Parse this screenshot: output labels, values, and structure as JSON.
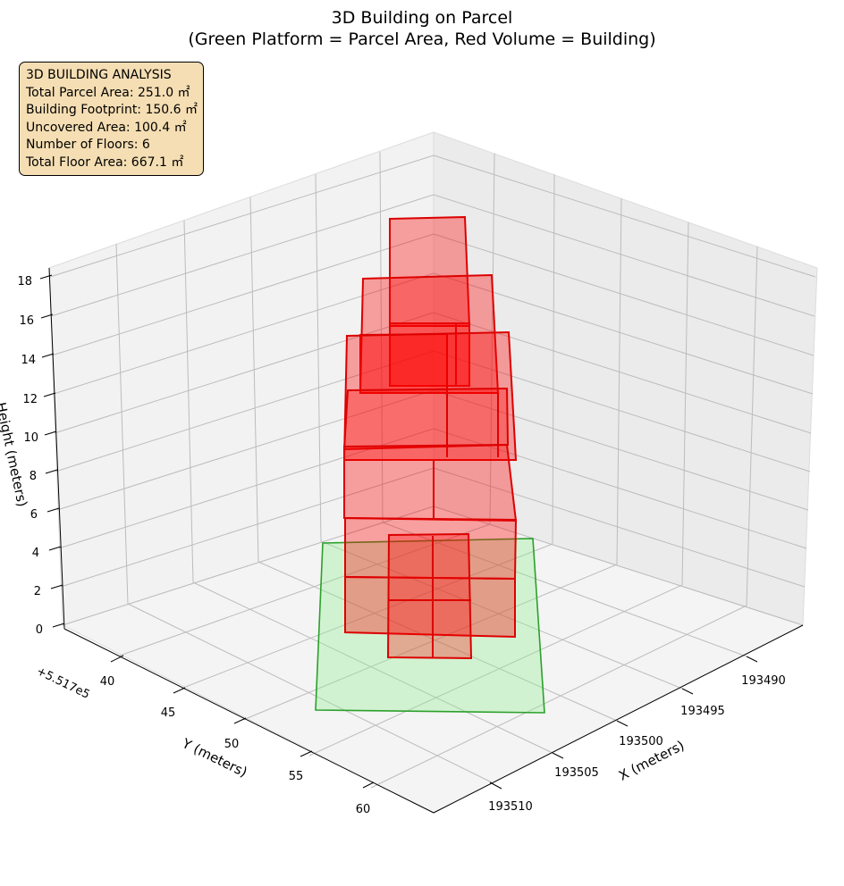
{
  "chart_data": {
    "type": "3d-boxes",
    "title_line1": "3D Building on Parcel",
    "title_line2": "(Green Platform = Parcel Area, Red Volume = Building)",
    "x_axis": {
      "label": "X (meters)",
      "ticks": [
        "193490",
        "193495",
        "193500",
        "193505",
        "193510"
      ]
    },
    "y_axis": {
      "label": "Y (meters)",
      "offset": "+5.517e5",
      "ticks": [
        "40",
        "45",
        "50",
        "55",
        "60"
      ]
    },
    "z_axis": {
      "label": "Height (meters)",
      "ticks": [
        "0",
        "2",
        "4",
        "6",
        "8",
        "10",
        "12",
        "14",
        "16",
        "18"
      ]
    },
    "parcel_color": "#90ee90",
    "building_color": "#ff0000",
    "info": {
      "heading": "3D BUILDING ANALYSIS",
      "lines": [
        "Total Parcel Area: 251.0 ㎡",
        "Building Footprint: 150.6 ㎡",
        "Uncovered Area: 100.4 ㎡",
        "Number of Floors: 6",
        "Total Floor Area: 667.1 ㎡"
      ]
    }
  }
}
